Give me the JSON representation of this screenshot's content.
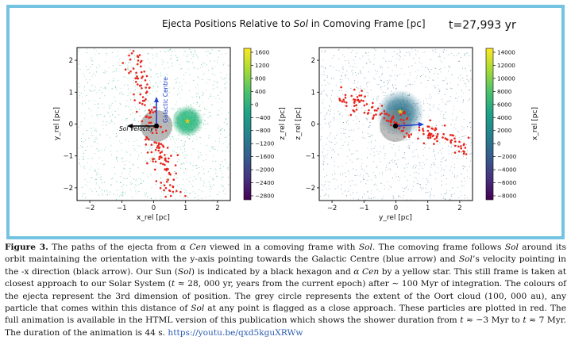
{
  "figure": {
    "title_prefix": "Ejecta Positions Relative to ",
    "title_sol": "Sol",
    "title_suffix": " in Comoving Frame [pc]",
    "time_label": "t=27,993 yr"
  },
  "chart_data": [
    {
      "type": "scatter",
      "xlabel": "x_rel [pc]",
      "ylabel": "y_rel [pc]",
      "xlim": [
        -2.4,
        2.4
      ],
      "ylim": [
        -2.4,
        2.4
      ],
      "xticks": [
        -2,
        -1,
        0,
        1,
        2
      ],
      "yticks": [
        -2,
        -1,
        0,
        1,
        2
      ],
      "colorbar_label": "z_rel [pc]",
      "colorbar_ticks": [
        1600,
        1200,
        800,
        400,
        0,
        -400,
        -800,
        -1200,
        -1600,
        -2000,
        -2400,
        -2800
      ],
      "annotations": [
        "Sol Velocity",
        "Galactic Centre"
      ],
      "markers": {
        "sol": [
          0,
          0
        ],
        "alpha_cen": [
          0.9,
          0.15
        ]
      },
      "oort_radius": 0.5
    },
    {
      "type": "scatter",
      "xlabel": "y_rel [pc]",
      "ylabel": "z_rel [pc]",
      "xlim": [
        -2.4,
        2.4
      ],
      "ylim": [
        -2.4,
        2.4
      ],
      "xticks": [
        -2,
        -1,
        0,
        1,
        2
      ],
      "yticks": [
        -2,
        -1,
        0,
        1,
        2
      ],
      "colorbar_label": "x_rel [pc]",
      "colorbar_ticks": [
        14000,
        12000,
        10000,
        8000,
        6000,
        4000,
        2000,
        0,
        -2000,
        -4000,
        -6000,
        -8000
      ],
      "markers": {
        "sol": [
          0,
          0
        ],
        "alpha_cen": [
          0.15,
          0.5
        ]
      },
      "oort_radius": 0.5
    }
  ],
  "caption": {
    "label": "Figure 3.",
    "segments": [
      {
        "t": " The paths of the ejecta from "
      },
      {
        "t": "α Cen",
        "i": true
      },
      {
        "t": " viewed in a comoving frame with "
      },
      {
        "t": "Sol",
        "i": true
      },
      {
        "t": ". The comoving frame follows "
      },
      {
        "t": "Sol",
        "i": true
      },
      {
        "t": " around its orbit maintaining the orientation with the y-axis pointing towards the Galactic Centre (blue arrow) and "
      },
      {
        "t": "Sol",
        "i": true
      },
      {
        "t": "’s velocity pointing in the -x direction (black arrow). Our Sun ("
      },
      {
        "t": "Sol",
        "i": true
      },
      {
        "t": ") is indicated by a black hexagon and "
      },
      {
        "t": "α Cen",
        "i": true
      },
      {
        "t": " by a yellow star. This still frame is taken at closest approach to our Solar System ("
      },
      {
        "t": "t",
        "i": true
      },
      {
        "t": " ≈ 28, 000 yr, years from the current epoch) after ∼ 100 Myr of integration. The colours of the ejecta represent the 3rd dimension of position. The grey circle represents the extent of the Oort cloud (100, 000 au), any particle that comes within this distance of "
      },
      {
        "t": "Sol",
        "i": true
      },
      {
        "t": " at any point is flagged as a close approach. These particles are plotted in red. The full animation is available in the HTML version of this publication which shows the shower duration from "
      },
      {
        "t": "t",
        "i": true
      },
      {
        "t": " ≈ −3 Myr to "
      },
      {
        "t": "t",
        "i": true
      },
      {
        "t": " ≈ 7 Myr. The duration of the animation is 44 s. "
      },
      {
        "t": "https://youtu.be/qxd5kguXRWw",
        "link": true
      }
    ]
  }
}
